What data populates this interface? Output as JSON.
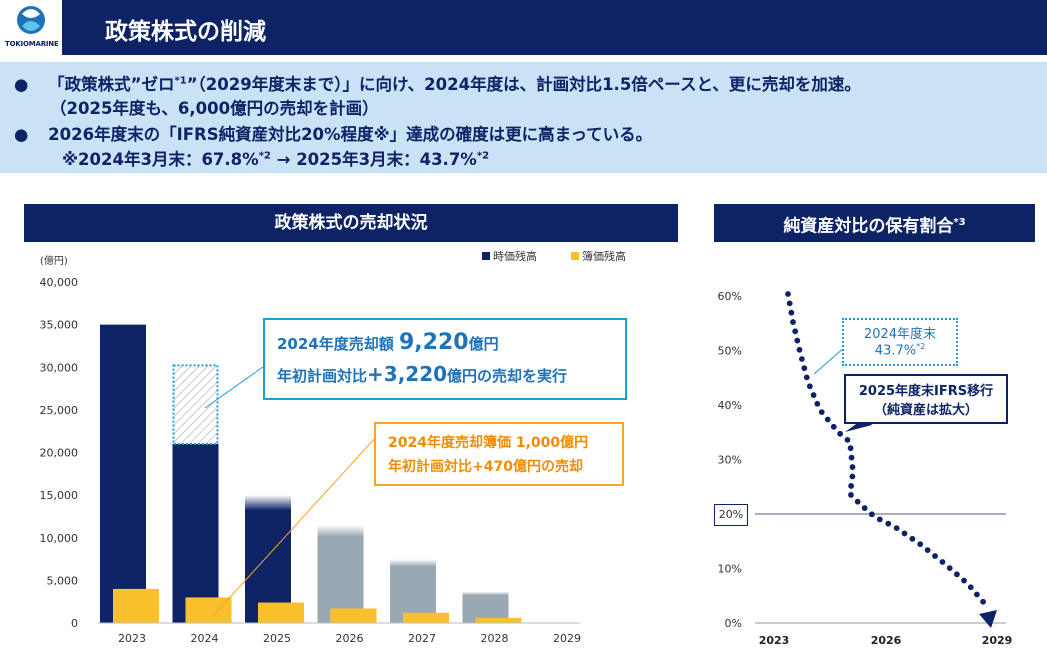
{
  "header": {
    "title": "政策株式の削減",
    "logo_text": "TOKIOMARINE"
  },
  "summary": {
    "line1_prefix": "「政策株式”ゼロ",
    "line1_sup": "*1",
    "line1_suffix": "”（2029年度末まで）」に向け、2024年度は、計画対比1.5倍ペースと、更に売却を加速。",
    "line2": "（2025年度も、6,000億円の売却を計画）",
    "line3": "2026年度末の「IFRS純資産対比20%程度※」達成の確度は更に高まっている。",
    "line4_a": "※2024年3月末：67.8%",
    "line4_a_sup": "*2",
    "line4_b": " → 2025年3月末：43.7%",
    "line4_b_sup": "*2"
  },
  "left_panel": {
    "title": "政策株式の売却状況",
    "unit_label": "(億円)",
    "legend": [
      {
        "label": "時価残高",
        "color": "#0d2366"
      },
      {
        "label": "簿価残高",
        "color": "#f9c02b"
      }
    ],
    "callout_blue": {
      "line1_prefix": "2024年度売却額 ",
      "line1_value": "9,220",
      "line1_suffix": "億円",
      "line2_prefix": "年初計画対比",
      "line2_value": "+3,220",
      "line2_suffix": "億円の売却を実行"
    },
    "callout_orange": {
      "line1": "2024年度売却簿価 1,000億円",
      "line2": "年初計画対比+470億円の売却"
    }
  },
  "right_panel": {
    "title": "純資産対比の保有割合",
    "title_sup": "*3",
    "callout_2024_line1": "2024年度末",
    "callout_2024_line2": "43.7%",
    "callout_2024_sup": "*2",
    "callout_ifrs_line1": "2025年度末IFRS移行",
    "callout_ifrs_line2": "（純資産は拡大）",
    "threshold_label": "20%"
  },
  "chart_data": [
    {
      "type": "bar",
      "categories": [
        "2023",
        "2024",
        "2025",
        "2026",
        "2027",
        "2028",
        "2029"
      ],
      "series": [
        {
          "name": "時価残高",
          "values": [
            35000,
            21000,
            15000,
            11500,
            7500,
            3700,
            0
          ]
        },
        {
          "name": "簿価残高",
          "values": [
            4000,
            3000,
            2400,
            1700,
            1200,
            600,
            0
          ]
        }
      ],
      "sold_2024": 9220,
      "ylim": [
        0,
        40000
      ],
      "yticks": [
        "40,000",
        "35,000",
        "30,000",
        "25,000",
        "20,000",
        "15,000",
        "10,000",
        "5,000",
        "0"
      ],
      "ytick_values": [
        40000,
        35000,
        30000,
        25000,
        20000,
        15000,
        10000,
        5000,
        0
      ],
      "ylabel": "(億円)",
      "legend_position": "top-right"
    },
    {
      "type": "line",
      "ylim": [
        0,
        60
      ],
      "yticks": [
        "60%",
        "50%",
        "40%",
        "30%",
        "20%",
        "10%",
        "0%"
      ],
      "ytick_values": [
        60,
        50,
        40,
        30,
        20,
        10,
        0
      ],
      "xticks": [
        "2023",
        "2026",
        "2029"
      ],
      "threshold": 20
    }
  ]
}
